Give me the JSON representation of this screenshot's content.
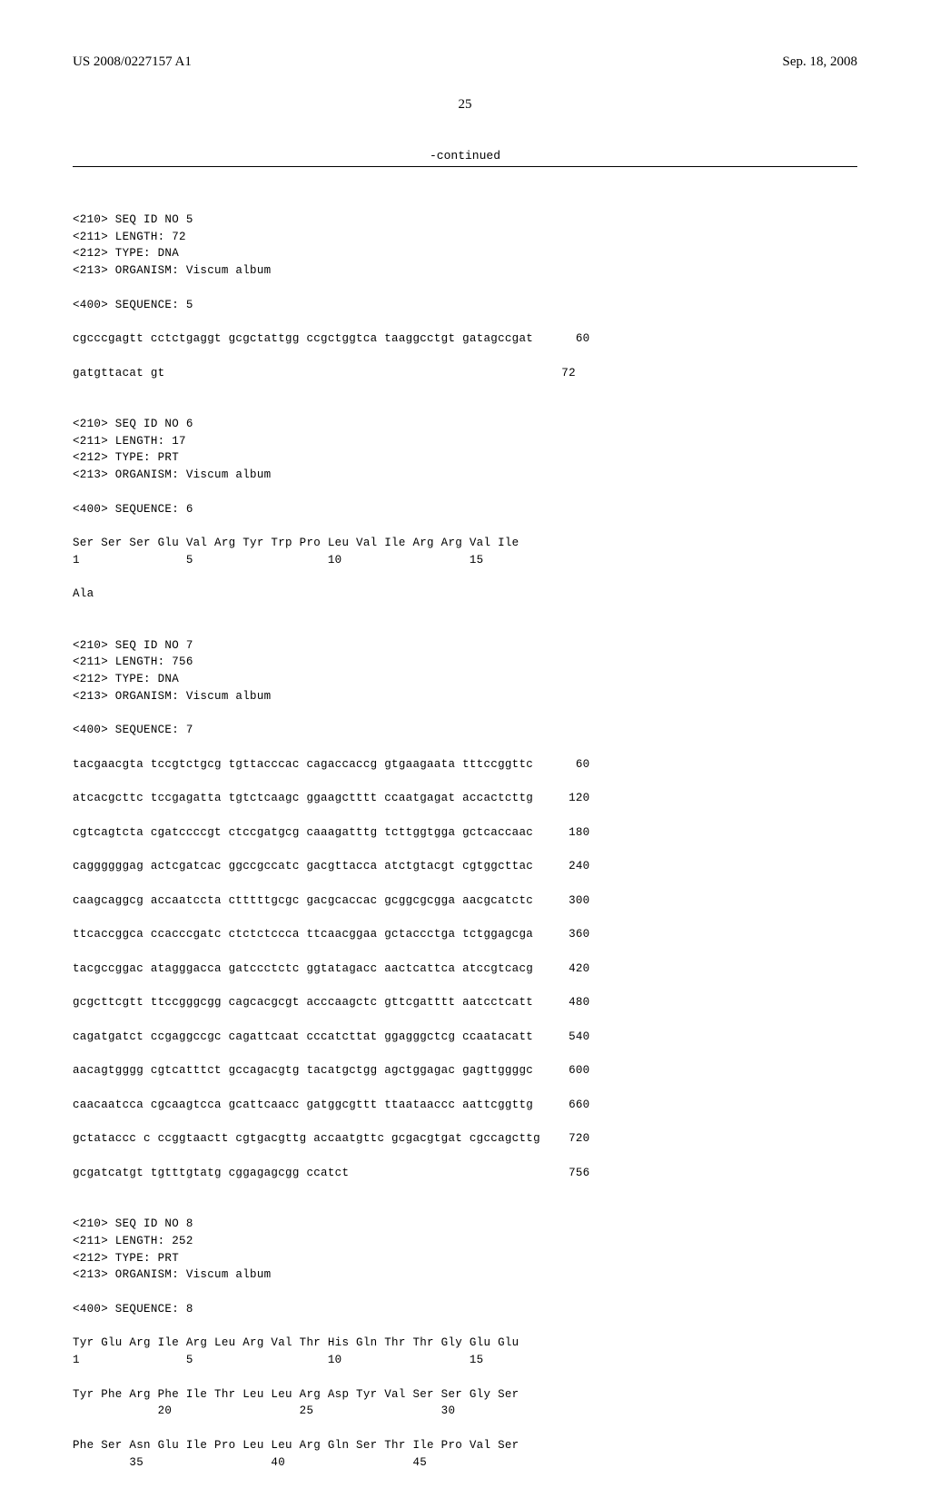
{
  "header": {
    "pub_number": "US 2008/0227157 A1",
    "pub_date": "Sep. 18, 2008"
  },
  "page_number": "25",
  "continued_label": "-continued",
  "seq5": {
    "id_line": "<210> SEQ ID NO 5",
    "length_line": "<211> LENGTH: 72",
    "type_line": "<212> TYPE: DNA",
    "organism_line": "<213> ORGANISM: Viscum album",
    "seq_label": "<400> SEQUENCE: 5",
    "line1": "cgcccgagtt cctctgaggt gcgctattgg ccgctggtca taaggcctgt gatagccgat      60",
    "line2": "gatgttacat gt                                                        72"
  },
  "seq6": {
    "id_line": "<210> SEQ ID NO 6",
    "length_line": "<211> LENGTH: 17",
    "type_line": "<212> TYPE: PRT",
    "organism_line": "<213> ORGANISM: Viscum album",
    "seq_label": "<400> SEQUENCE: 6",
    "line1": "Ser Ser Ser Glu Val Arg Tyr Trp Pro Leu Val Ile Arg Arg Val Ile",
    "line1_nums": "1               5                   10                  15",
    "line2": "Ala"
  },
  "seq7": {
    "id_line": "<210> SEQ ID NO 7",
    "length_line": "<211> LENGTH: 756",
    "type_line": "<212> TYPE: DNA",
    "organism_line": "<213> ORGANISM: Viscum album",
    "seq_label": "<400> SEQUENCE: 7",
    "l1": "tacgaacgta tccgtctgcg tgttacccac cagaccaccg gtgaagaata tttccggttc      60",
    "l2": "atcacgcttc tccgagatta tgtctcaagc ggaagctttt ccaatgagat accactcttg     120",
    "l3": "cgtcagtcta cgatccccgt ctccgatgcg caaagatttg tcttggtgga gctcaccaac     180",
    "l4": "caggggggag actcgatcac ggccgccatc gacgttacca atctgtacgt cgtggcttac     240",
    "l5": "caagcaggcg accaatccta ctttttgcgc gacgcaccac gcggcgcgga aacgcatctc     300",
    "l6": "ttcaccggca ccacccgatc ctctctccca ttcaacggaa gctaccctga tctggagcga     360",
    "l7": "tacgccggac atagggacca gatccctctc ggtatagacc aactcattca atccgtcacg     420",
    "l8": "gcgcttcgtt ttccgggcgg cagcacgcgt acccaagctc gttcgatttt aatcctcatt     480",
    "l9": "cagatgatct ccgaggccgc cagattcaat cccatcttat ggagggctcg ccaatacatt     540",
    "l10": "aacagtgggg cgtcatttct gccagacgtg tacatgctgg agctggagac gagttggggc     600",
    "l11": "caacaatcca cgcaagtcca gcattcaacc gatggcgttt ttaataaccc aattcggttg     660",
    "l12": "gctataccc c ccggtaactt cgtgacgttg accaatgttc gcgacgtgat cgccagcttg    720",
    "l13": "gcgatcatgt tgtttgtatg cggagagcgg ccatct                               756"
  },
  "seq8": {
    "id_line": "<210> SEQ ID NO 8",
    "length_line": "<211> LENGTH: 252",
    "type_line": "<212> TYPE: PRT",
    "organism_line": "<213> ORGANISM: Viscum album",
    "seq_label": "<400> SEQUENCE: 8",
    "l1": "Tyr Glu Arg Ile Arg Leu Arg Val Thr His Gln Thr Thr Gly Glu Glu",
    "n1": "1               5                   10                  15",
    "l2": "Tyr Phe Arg Phe Ile Thr Leu Leu Arg Asp Tyr Val Ser Ser Gly Ser",
    "n2": "            20                  25                  30",
    "l3": "Phe Ser Asn Glu Ile Pro Leu Leu Arg Gln Ser Thr Ile Pro Val Ser",
    "n3": "        35                  40                  45"
  }
}
